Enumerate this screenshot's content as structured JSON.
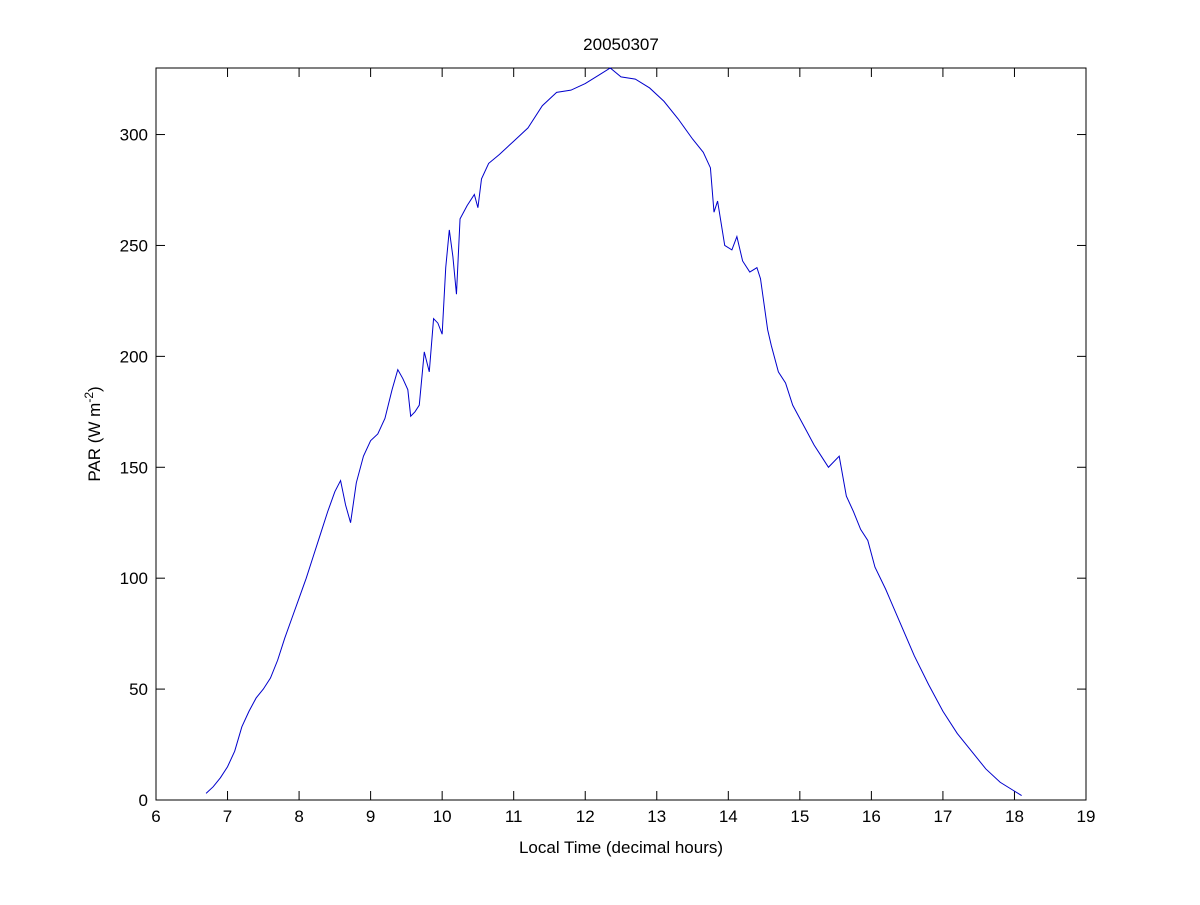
{
  "chart_data": {
    "type": "line",
    "title": "20050307",
    "x_label": "Local Time (decimal hours)",
    "y_label": {
      "text": "PAR (W m",
      "superscript": "-2",
      "suffix": ")"
    },
    "xlim": [
      6,
      19
    ],
    "ylim": [
      0,
      330
    ],
    "xticks": [
      6,
      7,
      8,
      9,
      10,
      11,
      12,
      13,
      14,
      15,
      16,
      17,
      18,
      19
    ],
    "yticks": [
      0,
      50,
      100,
      150,
      200,
      250,
      300
    ],
    "x": [
      6.7,
      6.8,
      6.9,
      7.0,
      7.1,
      7.2,
      7.3,
      7.4,
      7.5,
      7.6,
      7.7,
      7.8,
      7.9,
      8.0,
      8.1,
      8.2,
      8.3,
      8.4,
      8.5,
      8.58,
      8.65,
      8.72,
      8.8,
      8.9,
      9.0,
      9.1,
      9.2,
      9.3,
      9.38,
      9.45,
      9.52,
      9.56,
      9.62,
      9.68,
      9.75,
      9.82,
      9.88,
      9.94,
      10.0,
      10.05,
      10.1,
      10.15,
      10.2,
      10.25,
      10.35,
      10.45,
      10.5,
      10.55,
      10.65,
      10.8,
      11.0,
      11.2,
      11.4,
      11.6,
      11.8,
      12.0,
      12.2,
      12.35,
      12.5,
      12.7,
      12.9,
      13.1,
      13.3,
      13.5,
      13.65,
      13.75,
      13.8,
      13.85,
      13.95,
      14.05,
      14.12,
      14.2,
      14.3,
      14.4,
      14.45,
      14.55,
      14.6,
      14.7,
      14.8,
      14.9,
      15.0,
      15.1,
      15.2,
      15.3,
      15.4,
      15.55,
      15.65,
      15.75,
      15.85,
      15.95,
      16.05,
      16.2,
      16.4,
      16.6,
      16.8,
      17.0,
      17.2,
      17.4,
      17.6,
      17.8,
      18.0,
      18.1
    ],
    "series": [
      {
        "color": "#0000cc",
        "values": [
          3,
          6,
          10,
          15,
          22,
          33,
          40,
          46,
          50,
          55,
          63,
          73,
          82,
          91,
          100,
          110,
          120,
          130,
          139,
          144,
          133,
          125,
          143,
          155,
          162,
          165,
          172,
          185,
          194,
          190,
          185,
          173,
          175,
          178,
          202,
          193,
          217,
          215,
          210,
          240,
          257,
          245,
          228,
          262,
          268,
          273,
          267,
          280,
          287,
          291,
          297,
          303,
          313,
          319,
          320,
          323,
          327,
          330,
          326,
          325,
          321,
          315,
          307,
          298,
          292,
          285,
          265,
          270,
          250,
          248,
          254,
          243,
          238,
          240,
          235,
          212,
          205,
          193,
          188,
          178,
          172,
          166,
          160,
          155,
          150,
          155,
          137,
          130,
          122,
          117,
          105,
          95,
          80,
          65,
          52,
          40,
          30,
          22,
          14,
          8,
          4,
          2
        ]
      }
    ]
  }
}
